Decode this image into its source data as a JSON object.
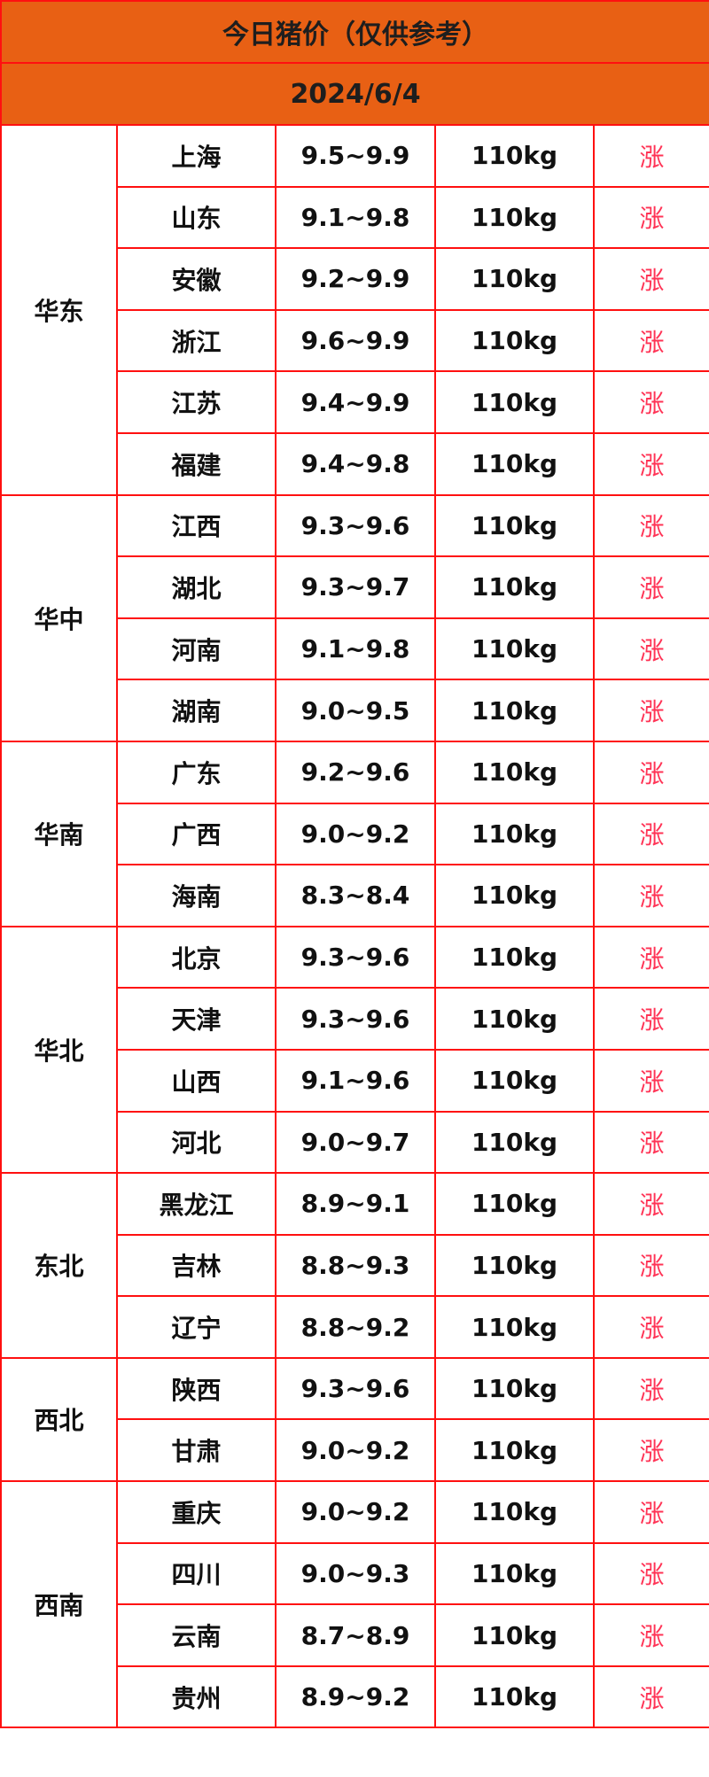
{
  "title": "今日猪价（仅供参考）",
  "date": "2024/6/4",
  "colors": {
    "header_bg": "#e86014",
    "border": "#ff1010",
    "trend_up": "#ff3355"
  },
  "regions": [
    {
      "name": "华东",
      "rows": [
        [
          "上海",
          "9.5~9.9"
        ],
        [
          "山东",
          "9.1~9.8"
        ],
        [
          "安徽",
          "9.2~9.9"
        ],
        [
          "浙江",
          "9.6~9.9"
        ],
        [
          "江苏",
          "9.4~9.9"
        ],
        [
          "福建",
          "9.4~9.8"
        ]
      ]
    },
    {
      "name": "华中",
      "rows": [
        [
          "江西",
          "9.3~9.6"
        ],
        [
          "湖北",
          "9.3~9.7"
        ],
        [
          "河南",
          "9.1~9.8"
        ],
        [
          "湖南",
          "9.0~9.5"
        ]
      ]
    },
    {
      "name": "华南",
      "rows": [
        [
          "广东",
          "9.2~9.6"
        ],
        [
          "广西",
          "9.0~9.2"
        ],
        [
          "海南",
          "8.3~8.4"
        ]
      ]
    },
    {
      "name": "华北",
      "rows": [
        [
          "北京",
          "9.3~9.6"
        ],
        [
          "天津",
          "9.3~9.6"
        ],
        [
          "山西",
          "9.1~9.6"
        ],
        [
          "河北",
          "9.0~9.7"
        ]
      ]
    },
    {
      "name": "东北",
      "rows": [
        [
          "黑龙江",
          "8.9~9.1"
        ],
        [
          "吉林",
          "8.8~9.3"
        ],
        [
          "辽宁",
          "8.8~9.2"
        ]
      ]
    },
    {
      "name": "西北",
      "rows": [
        [
          "陕西",
          "9.3~9.6"
        ],
        [
          "甘肃",
          "9.0~9.2"
        ]
      ]
    },
    {
      "name": "西南",
      "rows": [
        [
          "重庆",
          "9.0~9.2"
        ],
        [
          "四川",
          "9.0~9.3"
        ],
        [
          "云南",
          "8.7~8.9"
        ],
        [
          "贵州",
          "8.9~9.2"
        ]
      ]
    }
  ],
  "weight": "110kg",
  "trend": "涨"
}
